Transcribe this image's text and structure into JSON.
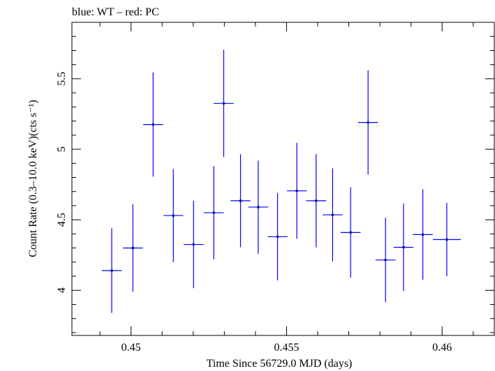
{
  "chart_data": {
    "type": "scatter",
    "title": "blue: WT – red: PC",
    "xlabel": "Time Since 56729.0 MJD (days)",
    "ylabel": "Count Rate (0.3–10.0 keV)(cts s⁻¹)",
    "xlim": [
      0.4481,
      0.4617
    ],
    "ylim": [
      3.68,
      5.9
    ],
    "x_ticks": [
      0.45,
      0.455,
      0.46
    ],
    "x_tick_labels": [
      "0.45",
      "0.455",
      "0.46"
    ],
    "y_ticks": [
      4,
      4.5,
      5,
      5.5
    ],
    "y_tick_labels": [
      "4",
      "4.5",
      "5",
      "5.5"
    ],
    "grid": false,
    "colors": {
      "wt": "#0000ff",
      "pc": "#ff0000",
      "point": "#00008b",
      "axes": "#000000"
    },
    "series": [
      {
        "name": "WT",
        "color": "#0000ff",
        "points": [
          {
            "x": 0.44938,
            "xerr": 0.00032,
            "y": 4.14,
            "yerr": 0.3
          },
          {
            "x": 0.45006,
            "xerr": 0.00032,
            "y": 4.3,
            "yerr": 0.31
          },
          {
            "x": 0.45071,
            "xerr": 0.00032,
            "y": 5.175,
            "yerr": 0.37
          },
          {
            "x": 0.45136,
            "xerr": 0.00032,
            "y": 4.53,
            "yerr": 0.33
          },
          {
            "x": 0.45201,
            "xerr": 0.00032,
            "y": 4.325,
            "yerr": 0.31
          },
          {
            "x": 0.45266,
            "xerr": 0.00032,
            "y": 4.55,
            "yerr": 0.33
          },
          {
            "x": 0.45298,
            "xerr": 0.00032,
            "y": 5.325,
            "yerr": 0.38
          },
          {
            "x": 0.45352,
            "xerr": 0.00032,
            "y": 4.635,
            "yerr": 0.33
          },
          {
            "x": 0.45409,
            "xerr": 0.00032,
            "y": 4.59,
            "yerr": 0.33
          },
          {
            "x": 0.45471,
            "xerr": 0.00032,
            "y": 4.38,
            "yerr": 0.31
          },
          {
            "x": 0.45533,
            "xerr": 0.00032,
            "y": 4.705,
            "yerr": 0.34
          },
          {
            "x": 0.45595,
            "xerr": 0.00032,
            "y": 4.635,
            "yerr": 0.33
          },
          {
            "x": 0.45648,
            "xerr": 0.00032,
            "y": 4.535,
            "yerr": 0.33
          },
          {
            "x": 0.45706,
            "xerr": 0.00032,
            "y": 4.41,
            "yerr": 0.32
          },
          {
            "x": 0.45762,
            "xerr": 0.00032,
            "y": 5.19,
            "yerr": 0.37
          },
          {
            "x": 0.45818,
            "xerr": 0.00032,
            "y": 4.215,
            "yerr": 0.3
          },
          {
            "x": 0.45876,
            "xerr": 0.00032,
            "y": 4.305,
            "yerr": 0.31
          },
          {
            "x": 0.45938,
            "xerr": 0.00032,
            "y": 4.395,
            "yerr": 0.32
          },
          {
            "x": 0.46015,
            "xerr": 0.00045,
            "y": 4.36,
            "yerr": 0.26
          }
        ]
      }
    ]
  }
}
